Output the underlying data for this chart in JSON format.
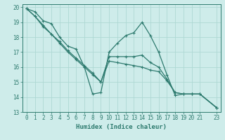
{
  "xlabel": "Humidex (Indice chaleur)",
  "background_color": "#ceecea",
  "grid_color": "#aed8d4",
  "line_color": "#2d7a6e",
  "xlim": [
    -0.5,
    23.5
  ],
  "ylim": [
    13,
    20.2
  ],
  "yticks": [
    13,
    14,
    15,
    16,
    17,
    18,
    19,
    20
  ],
  "xticks": [
    0,
    1,
    2,
    3,
    4,
    5,
    6,
    7,
    8,
    9,
    10,
    11,
    12,
    13,
    14,
    15,
    16,
    17,
    18,
    19,
    20,
    21,
    23
  ],
  "series": [
    {
      "x": [
        0,
        1,
        2,
        3,
        4,
        5,
        6,
        7,
        8,
        9,
        10,
        11,
        12,
        13,
        14,
        15,
        16,
        17,
        18,
        19,
        20,
        21,
        23
      ],
      "y": [
        19.9,
        19.7,
        19.1,
        18.9,
        18.0,
        17.4,
        17.2,
        16.0,
        14.2,
        14.3,
        17.0,
        17.6,
        18.1,
        18.3,
        19.0,
        18.1,
        17.0,
        15.5,
        14.1,
        14.2,
        14.2,
        14.2,
        13.3
      ]
    },
    {
      "x": [
        0,
        1,
        2,
        3,
        4,
        5,
        6,
        7,
        8,
        9,
        10,
        11,
        12,
        13,
        14,
        15,
        16,
        17,
        18,
        19,
        20,
        21,
        23
      ],
      "y": [
        19.9,
        19.4,
        18.8,
        18.2,
        17.7,
        17.1,
        16.6,
        16.1,
        15.6,
        15.0,
        16.7,
        16.7,
        16.7,
        16.7,
        16.8,
        16.3,
        16.0,
        15.2,
        14.3,
        14.2,
        14.2,
        14.2,
        13.3
      ]
    },
    {
      "x": [
        0,
        1,
        2,
        3,
        4,
        5,
        6,
        7,
        8,
        9,
        10,
        11,
        12,
        13,
        14,
        15,
        16,
        17,
        18,
        19,
        20,
        21,
        23
      ],
      "y": [
        19.9,
        19.4,
        18.7,
        18.2,
        17.6,
        17.0,
        16.5,
        16.0,
        15.5,
        15.0,
        16.4,
        16.3,
        16.2,
        16.1,
        16.0,
        15.8,
        15.7,
        15.1,
        14.3,
        14.2,
        14.2,
        14.2,
        13.3
      ]
    }
  ]
}
